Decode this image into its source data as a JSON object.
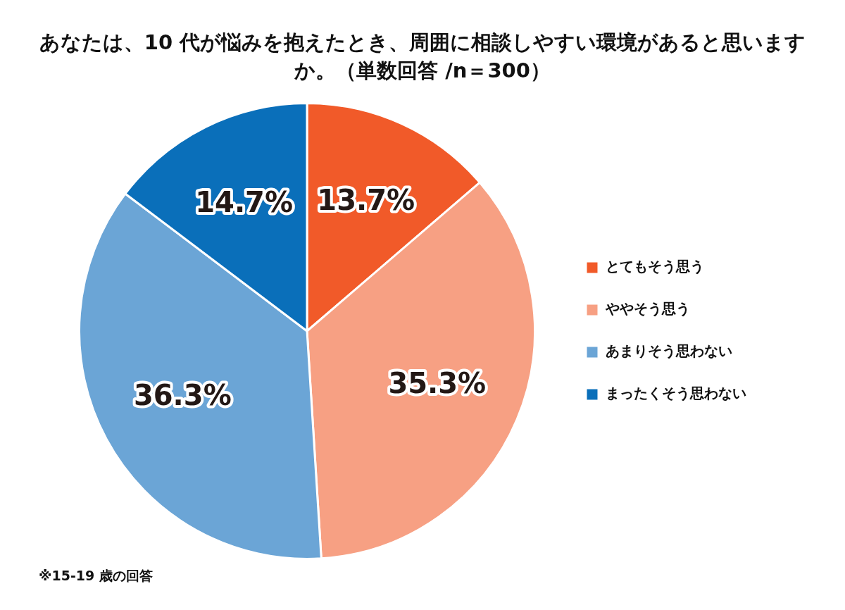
{
  "chart_data": {
    "type": "pie",
    "title": "あなたは、10 代が悩みを抱えたとき、周囲に相談しやすい環境があると思いますか。（単数回答 /n＝300）",
    "categories": [
      "とてもそう思う",
      "ややそう思う",
      "あまりそう思わない",
      "まったくそう思わない"
    ],
    "values": [
      13.7,
      35.3,
      36.3,
      14.7
    ],
    "colors": [
      "#f15a29",
      "#f7a083",
      "#6ba5d6",
      "#0a6fba"
    ],
    "value_labels": [
      "13.7%",
      "35.3%",
      "36.3%",
      "14.7%"
    ],
    "legend": "right",
    "annotations": [
      "※15-19 歳の回答"
    ]
  }
}
